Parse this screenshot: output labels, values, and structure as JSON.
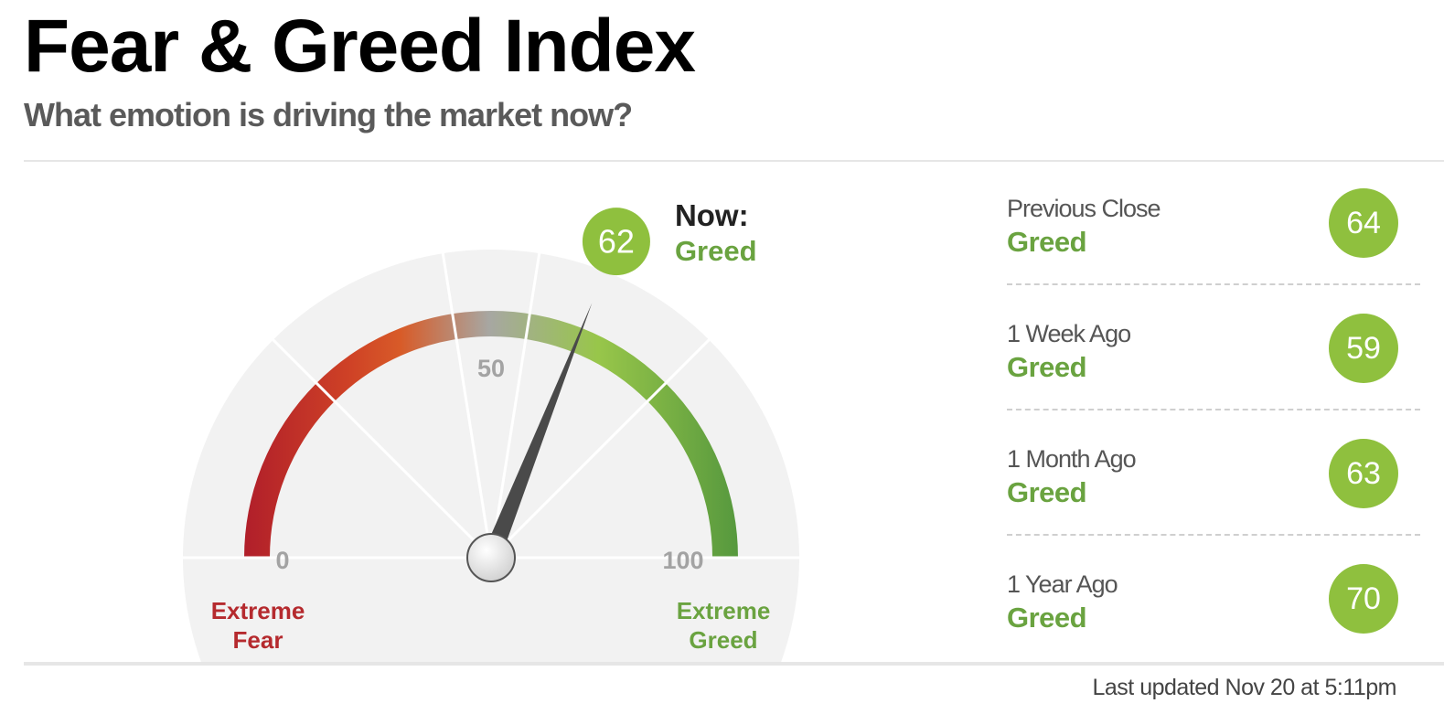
{
  "header": {
    "title": "Fear & Greed Index",
    "subtitle": "What emotion is driving the market now?"
  },
  "colors": {
    "fear": "#b52a2e",
    "greed": "#6aa340",
    "badge": "#8fc03e",
    "needle": "#4a4a4a"
  },
  "chart_data": {
    "type": "gauge",
    "min": 0,
    "max": 100,
    "value": 62,
    "now_label": "Now:",
    "rating": "Greed",
    "ticks": [
      {
        "value": 0,
        "label": "0"
      },
      {
        "value": 50,
        "label": "50"
      },
      {
        "value": 100,
        "label": "100"
      }
    ],
    "zone_boundaries": [
      0,
      25,
      45,
      55,
      75,
      100
    ],
    "min_label": [
      "Extreme",
      "Fear"
    ],
    "max_label": [
      "Extreme",
      "Greed"
    ]
  },
  "history": [
    {
      "label": "Previous Close",
      "rating": "Greed",
      "value": "64"
    },
    {
      "label": "1 Week Ago",
      "rating": "Greed",
      "value": "59"
    },
    {
      "label": "1 Month Ago",
      "rating": "Greed",
      "value": "63"
    },
    {
      "label": "1 Year Ago",
      "rating": "Greed",
      "value": "70"
    }
  ],
  "footer": {
    "last_updated": "Last updated Nov 20 at 5:11pm"
  }
}
